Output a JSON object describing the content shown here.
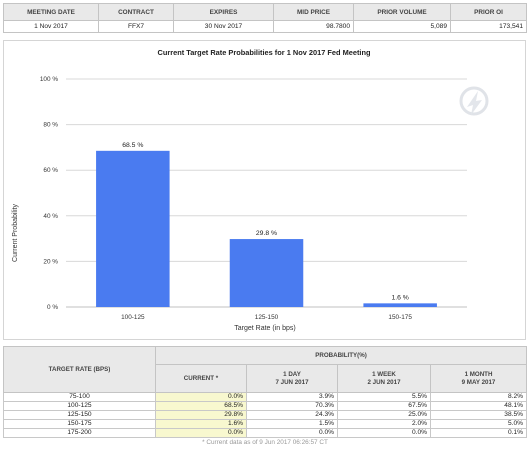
{
  "meeting_table": {
    "headers": [
      "MEETING DATE",
      "CONTRACT",
      "EXPIRES",
      "MID PRICE",
      "PRIOR VOLUME",
      "PRIOR OI"
    ],
    "row": [
      "1 Nov 2017",
      "FFX7",
      "30 Nov 2017",
      "98.7800",
      "5,089",
      "173,541"
    ]
  },
  "chart_data": {
    "type": "bar",
    "title": "Current Target Rate Probabilities for 1 Nov 2017 Fed Meeting",
    "xlabel": "Target Rate (in bps)",
    "ylabel": "Current Probability",
    "categories": [
      "100-125",
      "125-150",
      "150-175"
    ],
    "values": [
      68.5,
      29.8,
      1.6
    ],
    "data_labels": [
      "68.5 %",
      "29.8 %",
      "1.6 %"
    ],
    "ylim": [
      0,
      100
    ],
    "yticks": [
      0,
      20,
      40,
      60,
      80,
      100
    ],
    "ytick_labels": [
      "0 %",
      "20 %",
      "40 %",
      "60 %",
      "80 %",
      "100 %"
    ],
    "grid": true,
    "bar_color": "#4a7bf0"
  },
  "probability_table": {
    "header_target": "TARGET RATE (BPS)",
    "header_group": "PROBABILITY(%)",
    "columns": [
      {
        "line1": "CURRENT *",
        "line2": ""
      },
      {
        "line1": "1 DAY",
        "line2": "7 JUN 2017"
      },
      {
        "line1": "1 WEEK",
        "line2": "2 JUN 2017"
      },
      {
        "line1": "1 MONTH",
        "line2": "9 MAY 2017"
      }
    ],
    "rows": [
      {
        "rate": "75-100",
        "values": [
          "0.0%",
          "3.9%",
          "5.5%",
          "8.2%"
        ]
      },
      {
        "rate": "100-125",
        "values": [
          "68.5%",
          "70.3%",
          "67.5%",
          "48.1%"
        ]
      },
      {
        "rate": "125-150",
        "values": [
          "29.8%",
          "24.3%",
          "25.0%",
          "38.5%"
        ]
      },
      {
        "rate": "150-175",
        "values": [
          "1.6%",
          "1.5%",
          "2.0%",
          "5.0%"
        ]
      },
      {
        "rate": "175-200",
        "values": [
          "0.0%",
          "0.0%",
          "0.0%",
          "0.1%"
        ]
      }
    ],
    "note": "* Current data as of 9 Jun 2017 06:26:57 CT"
  }
}
